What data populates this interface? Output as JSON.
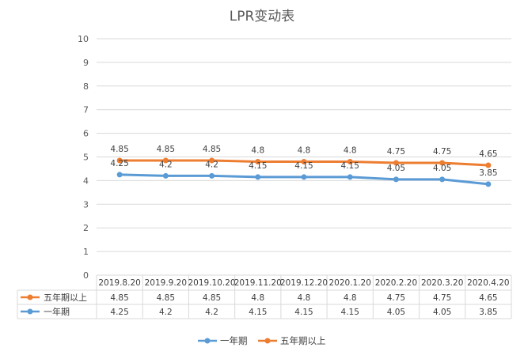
{
  "chart_data": {
    "type": "line",
    "title": "LPR变动表",
    "categories": [
      "2019.8.20",
      "2019.9.20",
      "2019.10.20",
      "2019.11.20",
      "2019.12.20",
      "2020.1.20",
      "2020.2.20",
      "2020.3.20",
      "2020.4.20"
    ],
    "series": [
      {
        "name": "五年期以上",
        "color": "#ED7D31",
        "values": [
          4.85,
          4.85,
          4.85,
          4.8,
          4.8,
          4.8,
          4.75,
          4.75,
          4.65
        ]
      },
      {
        "name": "一年期",
        "color": "#5B9BD5",
        "values": [
          4.25,
          4.2,
          4.2,
          4.15,
          4.15,
          4.15,
          4.05,
          4.05,
          3.85
        ]
      }
    ],
    "yticks": [
      "0",
      "1",
      "2",
      "3",
      "4",
      "5",
      "6",
      "7",
      "8",
      "9",
      "10"
    ],
    "ylim": [
      0,
      10
    ],
    "grid": true,
    "data_table": true,
    "legend": {
      "position": "bottom",
      "order": [
        "一年期",
        "五年期以上"
      ]
    }
  }
}
